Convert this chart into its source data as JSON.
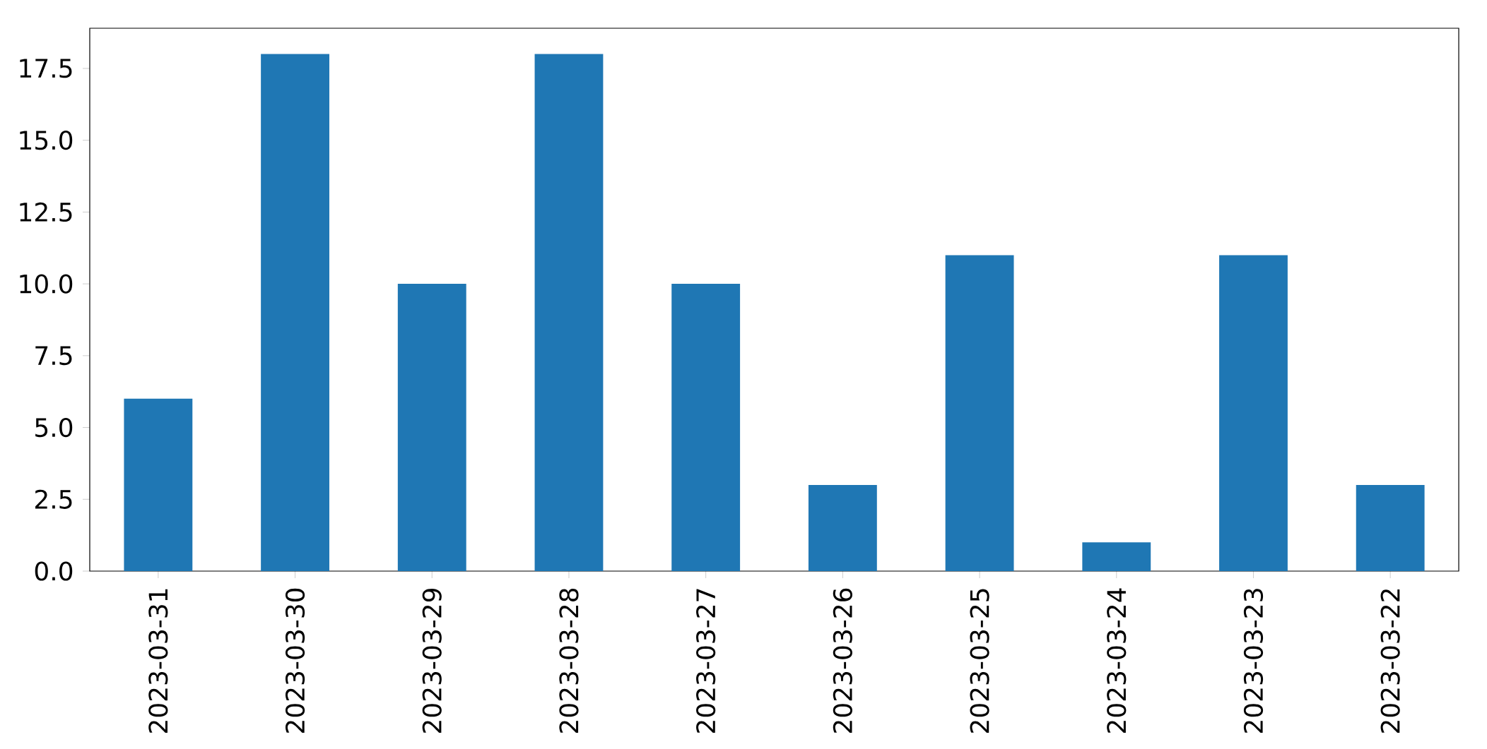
{
  "chart_data": {
    "type": "bar",
    "categories": [
      "2023-03-31",
      "2023-03-30",
      "2023-03-29",
      "2023-03-28",
      "2023-03-27",
      "2023-03-26",
      "2023-03-25",
      "2023-03-24",
      "2023-03-23",
      "2023-03-22"
    ],
    "values": [
      6,
      18,
      10,
      18,
      10,
      3,
      11,
      1,
      11,
      3
    ],
    "color": "#1f77b4",
    "ylim": [
      0,
      18.9
    ],
    "yticks": [
      {
        "value": 0,
        "label": "0.0"
      },
      {
        "value": 2.5,
        "label": "2.5"
      },
      {
        "value": 5,
        "label": "5.0"
      },
      {
        "value": 7.5,
        "label": "7.5"
      },
      {
        "value": 10,
        "label": "10.0"
      },
      {
        "value": 12.5,
        "label": "12.5"
      },
      {
        "value": 15,
        "label": "15.0"
      },
      {
        "value": 17.5,
        "label": "17.5"
      }
    ]
  }
}
